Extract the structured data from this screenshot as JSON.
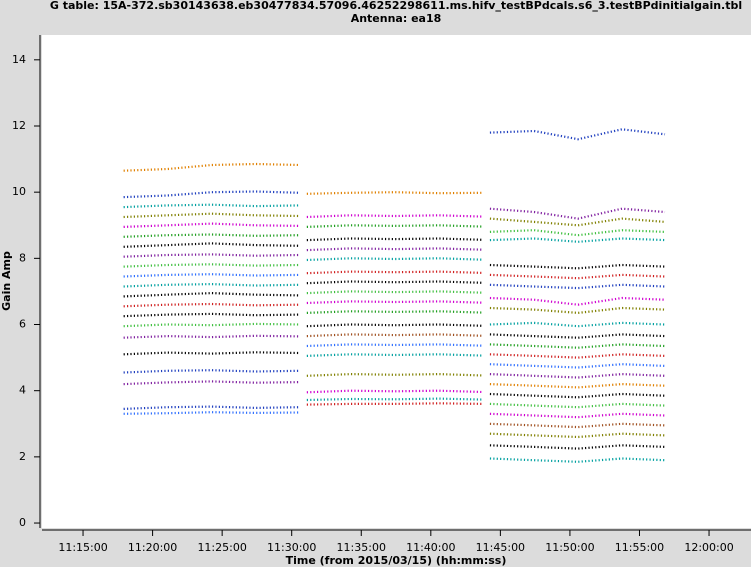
{
  "chart_data": {
    "type": "line",
    "title": "G table: 15A-372.sb30143638.eb30477834.57096.46252298611.ms.hifv_testBPdcals.s6_3.testBPdinitialgain.tbl",
    "subtitle": "Antenna: ea18",
    "x_label": "Time (from 2015/03/15) (hh:mm:ss)",
    "y_label": "Gain Amp",
    "xlim": [
      "11:12:03",
      "12:03:01"
    ],
    "xticks": [
      "11:15:00",
      "11:20:00",
      "11:25:00",
      "11:30:00",
      "11:35:00",
      "11:40:00",
      "11:45:00",
      "11:50:00",
      "11:55:00",
      "12:00:00"
    ],
    "ylim": [
      -0.15,
      14.75
    ],
    "yticks": [
      0,
      2,
      4,
      6,
      8,
      10,
      12,
      14
    ],
    "series": [
      {
        "color": "#e08000",
        "x": [
          "11:17:55",
          "11:21:05",
          "11:24:15",
          "11:27:25",
          "11:30:35"
        ],
        "values": [
          10.65,
          10.7,
          10.82,
          10.85,
          10.82
        ]
      },
      {
        "color": "#1f3fbf",
        "x": [
          "11:17:55",
          "11:21:05",
          "11:24:15",
          "11:27:25",
          "11:30:35"
        ],
        "values": [
          9.85,
          9.9,
          10.0,
          10.02,
          9.98
        ]
      },
      {
        "color": "#00a0a0",
        "x": [
          "11:17:55",
          "11:21:05",
          "11:24:15",
          "11:27:25",
          "11:30:35"
        ],
        "values": [
          9.55,
          9.6,
          9.62,
          9.58,
          9.6
        ]
      },
      {
        "color": "#808000",
        "x": [
          "11:17:55",
          "11:21:05",
          "11:24:15",
          "11:27:25",
          "11:30:35"
        ],
        "values": [
          9.25,
          9.3,
          9.35,
          9.3,
          9.28
        ]
      },
      {
        "color": "#d000d0",
        "x": [
          "11:17:55",
          "11:21:05",
          "11:24:15",
          "11:27:25",
          "11:30:35"
        ],
        "values": [
          8.95,
          9.0,
          9.05,
          9.0,
          8.98
        ]
      },
      {
        "color": "#20a020",
        "x": [
          "11:17:55",
          "11:21:05",
          "11:24:15",
          "11:27:25",
          "11:30:35"
        ],
        "values": [
          8.65,
          8.7,
          8.72,
          8.68,
          8.7
        ]
      },
      {
        "color": "#000000",
        "x": [
          "11:17:55",
          "11:21:05",
          "11:24:15",
          "11:27:25",
          "11:30:35"
        ],
        "values": [
          8.35,
          8.4,
          8.45,
          8.4,
          8.38
        ]
      },
      {
        "color": "#8020a0",
        "x": [
          "11:17:55",
          "11:21:05",
          "11:24:15",
          "11:27:25",
          "11:30:35"
        ],
        "values": [
          8.05,
          8.1,
          8.12,
          8.08,
          8.1
        ]
      },
      {
        "color": "#40c040",
        "x": [
          "11:17:55",
          "11:21:05",
          "11:24:15",
          "11:27:25",
          "11:30:35"
        ],
        "values": [
          7.75,
          7.8,
          7.82,
          7.78,
          7.8
        ]
      },
      {
        "color": "#3070ff",
        "x": [
          "11:17:55",
          "11:21:05",
          "11:24:15",
          "11:27:25",
          "11:30:35"
        ],
        "values": [
          7.45,
          7.5,
          7.52,
          7.48,
          7.5
        ]
      },
      {
        "color": "#00a0a0",
        "x": [
          "11:17:55",
          "11:21:05",
          "11:24:15",
          "11:27:25",
          "11:30:35"
        ],
        "values": [
          7.15,
          7.2,
          7.22,
          7.18,
          7.2
        ]
      },
      {
        "color": "#000000",
        "x": [
          "11:17:55",
          "11:21:05",
          "11:24:15",
          "11:27:25",
          "11:30:35"
        ],
        "values": [
          6.85,
          6.9,
          6.95,
          6.9,
          6.88
        ]
      },
      {
        "color": "#d02020",
        "x": [
          "11:17:55",
          "11:21:05",
          "11:24:15",
          "11:27:25",
          "11:30:35"
        ],
        "values": [
          6.55,
          6.6,
          6.62,
          6.58,
          6.6
        ]
      },
      {
        "color": "#000000",
        "x": [
          "11:17:55",
          "11:21:05",
          "11:24:15",
          "11:27:25",
          "11:30:35"
        ],
        "values": [
          6.25,
          6.3,
          6.32,
          6.28,
          6.3
        ]
      },
      {
        "color": "#40c040",
        "x": [
          "11:17:55",
          "11:21:05",
          "11:24:15",
          "11:27:25",
          "11:30:35"
        ],
        "values": [
          5.95,
          6.0,
          5.98,
          6.02,
          6.0
        ]
      },
      {
        "color": "#8020a0",
        "x": [
          "11:17:55",
          "11:21:05",
          "11:24:15",
          "11:27:25",
          "11:30:35"
        ],
        "values": [
          5.6,
          5.65,
          5.62,
          5.66,
          5.64
        ]
      },
      {
        "color": "#000000",
        "x": [
          "11:17:55",
          "11:21:05",
          "11:24:15",
          "11:27:25",
          "11:30:35"
        ],
        "values": [
          5.1,
          5.15,
          5.12,
          5.16,
          5.14
        ]
      },
      {
        "color": "#1f3fbf",
        "x": [
          "11:17:55",
          "11:21:05",
          "11:24:15",
          "11:27:25",
          "11:30:35"
        ],
        "values": [
          4.55,
          4.6,
          4.62,
          4.58,
          4.6
        ]
      },
      {
        "color": "#8020a0",
        "x": [
          "11:17:55",
          "11:21:05",
          "11:24:15",
          "11:27:25",
          "11:30:35"
        ],
        "values": [
          4.2,
          4.25,
          4.28,
          4.24,
          4.26
        ]
      },
      {
        "color": "#1f3fbf",
        "x": [
          "11:17:55",
          "11:21:05",
          "11:24:15",
          "11:27:25",
          "11:30:35"
        ],
        "values": [
          3.45,
          3.5,
          3.52,
          3.48,
          3.5
        ]
      },
      {
        "color": "#3070ff",
        "x": [
          "11:17:55",
          "11:21:05",
          "11:24:15",
          "11:27:25",
          "11:30:35"
        ],
        "values": [
          3.3,
          3.32,
          3.35,
          3.33,
          3.34
        ]
      },
      {
        "color": "#e08000",
        "x": [
          "11:31:05",
          "11:34:15",
          "11:37:25",
          "11:40:35",
          "11:43:45"
        ],
        "values": [
          9.95,
          9.98,
          10.0,
          9.97,
          9.98
        ]
      },
      {
        "color": "#d000d0",
        "x": [
          "11:31:05",
          "11:34:15",
          "11:37:25",
          "11:40:35",
          "11:43:45"
        ],
        "values": [
          9.25,
          9.3,
          9.28,
          9.3,
          9.26
        ]
      },
      {
        "color": "#20a020",
        "x": [
          "11:31:05",
          "11:34:15",
          "11:37:25",
          "11:40:35",
          "11:43:45"
        ],
        "values": [
          8.95,
          9.0,
          8.98,
          9.0,
          8.96
        ]
      },
      {
        "color": "#000000",
        "x": [
          "11:31:05",
          "11:34:15",
          "11:37:25",
          "11:40:35",
          "11:43:45"
        ],
        "values": [
          8.55,
          8.6,
          8.58,
          8.6,
          8.56
        ]
      },
      {
        "color": "#8020a0",
        "x": [
          "11:31:05",
          "11:34:15",
          "11:37:25",
          "11:40:35",
          "11:43:45"
        ],
        "values": [
          8.25,
          8.3,
          8.28,
          8.3,
          8.26
        ]
      },
      {
        "color": "#00a0a0",
        "x": [
          "11:31:05",
          "11:34:15",
          "11:37:25",
          "11:40:35",
          "11:43:45"
        ],
        "values": [
          7.95,
          8.0,
          7.98,
          8.0,
          7.96
        ]
      },
      {
        "color": "#d02020",
        "x": [
          "11:31:05",
          "11:34:15",
          "11:37:25",
          "11:40:35",
          "11:43:45"
        ],
        "values": [
          7.55,
          7.6,
          7.58,
          7.6,
          7.56
        ]
      },
      {
        "color": "#000000",
        "x": [
          "11:31:05",
          "11:34:15",
          "11:37:25",
          "11:40:35",
          "11:43:45"
        ],
        "values": [
          7.25,
          7.3,
          7.28,
          7.3,
          7.26
        ]
      },
      {
        "color": "#40c040",
        "x": [
          "11:31:05",
          "11:34:15",
          "11:37:25",
          "11:40:35",
          "11:43:45"
        ],
        "values": [
          6.95,
          7.0,
          6.98,
          7.0,
          6.96
        ]
      },
      {
        "color": "#d000d0",
        "x": [
          "11:31:05",
          "11:34:15",
          "11:37:25",
          "11:40:35",
          "11:43:45"
        ],
        "values": [
          6.65,
          6.7,
          6.68,
          6.7,
          6.66
        ]
      },
      {
        "color": "#20a020",
        "x": [
          "11:31:05",
          "11:34:15",
          "11:37:25",
          "11:40:35",
          "11:43:45"
        ],
        "values": [
          6.35,
          6.4,
          6.38,
          6.4,
          6.36
        ]
      },
      {
        "color": "#000000",
        "x": [
          "11:31:05",
          "11:34:15",
          "11:37:25",
          "11:40:35",
          "11:43:45"
        ],
        "values": [
          5.95,
          6.0,
          5.98,
          6.0,
          5.96
        ]
      },
      {
        "color": "#a05020",
        "x": [
          "11:31:05",
          "11:34:15",
          "11:37:25",
          "11:40:35",
          "11:43:45"
        ],
        "values": [
          5.65,
          5.7,
          5.68,
          5.7,
          5.66
        ]
      },
      {
        "color": "#3070ff",
        "x": [
          "11:31:05",
          "11:34:15",
          "11:37:25",
          "11:40:35",
          "11:43:45"
        ],
        "values": [
          5.35,
          5.4,
          5.38,
          5.4,
          5.36
        ]
      },
      {
        "color": "#00a0a0",
        "x": [
          "11:31:05",
          "11:34:15",
          "11:37:25",
          "11:40:35",
          "11:43:45"
        ],
        "values": [
          5.05,
          5.1,
          5.08,
          5.1,
          5.06
        ]
      },
      {
        "color": "#808000",
        "x": [
          "11:31:05",
          "11:34:15",
          "11:37:25",
          "11:40:35",
          "11:43:45"
        ],
        "values": [
          4.45,
          4.5,
          4.48,
          4.5,
          4.46
        ]
      },
      {
        "color": "#d000d0",
        "x": [
          "11:31:05",
          "11:34:15",
          "11:37:25",
          "11:40:35",
          "11:43:45"
        ],
        "values": [
          3.95,
          4.0,
          3.98,
          4.0,
          3.96
        ]
      },
      {
        "color": "#00a0a0",
        "x": [
          "11:31:05",
          "11:34:15",
          "11:37:25",
          "11:40:35",
          "11:43:45"
        ],
        "values": [
          3.72,
          3.75,
          3.74,
          3.76,
          3.73
        ]
      },
      {
        "color": "#d02020",
        "x": [
          "11:31:05",
          "11:34:15",
          "11:37:25",
          "11:40:35",
          "11:43:45"
        ],
        "values": [
          3.58,
          3.6,
          3.6,
          3.62,
          3.6
        ]
      },
      {
        "color": "#1f3fbf",
        "x": [
          "11:44:15",
          "11:47:25",
          "11:50:35",
          "11:53:45",
          "11:56:50"
        ],
        "values": [
          11.8,
          11.85,
          11.6,
          11.9,
          11.75
        ]
      },
      {
        "color": "#8020a0",
        "x": [
          "11:44:15",
          "11:47:25",
          "11:50:35",
          "11:53:45",
          "11:56:50"
        ],
        "values": [
          9.5,
          9.4,
          9.2,
          9.5,
          9.4
        ]
      },
      {
        "color": "#808000",
        "x": [
          "11:44:15",
          "11:47:25",
          "11:50:35",
          "11:53:45",
          "11:56:50"
        ],
        "values": [
          9.2,
          9.1,
          9.0,
          9.2,
          9.1
        ]
      },
      {
        "color": "#40c040",
        "x": [
          "11:44:15",
          "11:47:25",
          "11:50:35",
          "11:53:45",
          "11:56:50"
        ],
        "values": [
          8.8,
          8.85,
          8.7,
          8.85,
          8.8
        ]
      },
      {
        "color": "#00a0a0",
        "x": [
          "11:44:15",
          "11:47:25",
          "11:50:35",
          "11:53:45",
          "11:56:50"
        ],
        "values": [
          8.55,
          8.6,
          8.5,
          8.6,
          8.55
        ]
      },
      {
        "color": "#000000",
        "x": [
          "11:44:15",
          "11:47:25",
          "11:50:35",
          "11:53:45",
          "11:56:50"
        ],
        "values": [
          7.8,
          7.75,
          7.7,
          7.8,
          7.75
        ]
      },
      {
        "color": "#d02020",
        "x": [
          "11:44:15",
          "11:47:25",
          "11:50:35",
          "11:53:45",
          "11:56:50"
        ],
        "values": [
          7.5,
          7.45,
          7.4,
          7.5,
          7.45
        ]
      },
      {
        "color": "#1f3fbf",
        "x": [
          "11:44:15",
          "11:47:25",
          "11:50:35",
          "11:53:45",
          "11:56:50"
        ],
        "values": [
          7.2,
          7.15,
          7.1,
          7.2,
          7.15
        ]
      },
      {
        "color": "#d000d0",
        "x": [
          "11:44:15",
          "11:47:25",
          "11:50:35",
          "11:53:45",
          "11:56:50"
        ],
        "values": [
          6.8,
          6.75,
          6.6,
          6.8,
          6.75
        ]
      },
      {
        "color": "#808000",
        "x": [
          "11:44:15",
          "11:47:25",
          "11:50:35",
          "11:53:45",
          "11:56:50"
        ],
        "values": [
          6.5,
          6.45,
          6.35,
          6.5,
          6.45
        ]
      },
      {
        "color": "#00a0a0",
        "x": [
          "11:44:15",
          "11:47:25",
          "11:50:35",
          "11:53:45",
          "11:56:50"
        ],
        "values": [
          6.0,
          6.05,
          5.95,
          6.05,
          6.0
        ]
      },
      {
        "color": "#000000",
        "x": [
          "11:44:15",
          "11:47:25",
          "11:50:35",
          "11:53:45",
          "11:56:50"
        ],
        "values": [
          5.7,
          5.65,
          5.6,
          5.7,
          5.65
        ]
      },
      {
        "color": "#20a020",
        "x": [
          "11:44:15",
          "11:47:25",
          "11:50:35",
          "11:53:45",
          "11:56:50"
        ],
        "values": [
          5.4,
          5.35,
          5.3,
          5.4,
          5.35
        ]
      },
      {
        "color": "#d02020",
        "x": [
          "11:44:15",
          "11:47:25",
          "11:50:35",
          "11:53:45",
          "11:56:50"
        ],
        "values": [
          5.1,
          5.05,
          5.0,
          5.1,
          5.05
        ]
      },
      {
        "color": "#3070ff",
        "x": [
          "11:44:15",
          "11:47:25",
          "11:50:35",
          "11:53:45",
          "11:56:50"
        ],
        "values": [
          4.8,
          4.75,
          4.7,
          4.8,
          4.75
        ]
      },
      {
        "color": "#8020a0",
        "x": [
          "11:44:15",
          "11:47:25",
          "11:50:35",
          "11:53:45",
          "11:56:50"
        ],
        "values": [
          4.5,
          4.45,
          4.4,
          4.5,
          4.45
        ]
      },
      {
        "color": "#e08000",
        "x": [
          "11:44:15",
          "11:47:25",
          "11:50:35",
          "11:53:45",
          "11:56:50"
        ],
        "values": [
          4.2,
          4.15,
          4.1,
          4.2,
          4.15
        ]
      },
      {
        "color": "#000000",
        "x": [
          "11:44:15",
          "11:47:25",
          "11:50:35",
          "11:53:45",
          "11:56:50"
        ],
        "values": [
          3.9,
          3.85,
          3.8,
          3.9,
          3.85
        ]
      },
      {
        "color": "#40c040",
        "x": [
          "11:44:15",
          "11:47:25",
          "11:50:35",
          "11:53:45",
          "11:56:50"
        ],
        "values": [
          3.6,
          3.55,
          3.5,
          3.6,
          3.55
        ]
      },
      {
        "color": "#d000d0",
        "x": [
          "11:44:15",
          "11:47:25",
          "11:50:35",
          "11:53:45",
          "11:56:50"
        ],
        "values": [
          3.3,
          3.25,
          3.2,
          3.3,
          3.25
        ]
      },
      {
        "color": "#a05020",
        "x": [
          "11:44:15",
          "11:47:25",
          "11:50:35",
          "11:53:45",
          "11:56:50"
        ],
        "values": [
          3.0,
          2.95,
          2.9,
          3.0,
          2.95
        ]
      },
      {
        "color": "#808000",
        "x": [
          "11:44:15",
          "11:47:25",
          "11:50:35",
          "11:53:45",
          "11:56:50"
        ],
        "values": [
          2.7,
          2.65,
          2.6,
          2.7,
          2.65
        ]
      },
      {
        "color": "#000000",
        "x": [
          "11:44:15",
          "11:47:25",
          "11:50:35",
          "11:53:45",
          "11:56:50"
        ],
        "values": [
          2.35,
          2.3,
          2.25,
          2.35,
          2.3
        ]
      },
      {
        "color": "#00a0a0",
        "x": [
          "11:44:15",
          "11:47:25",
          "11:50:35",
          "11:53:45",
          "11:56:50"
        ],
        "values": [
          1.95,
          1.9,
          1.85,
          1.95,
          1.9
        ]
      }
    ]
  }
}
